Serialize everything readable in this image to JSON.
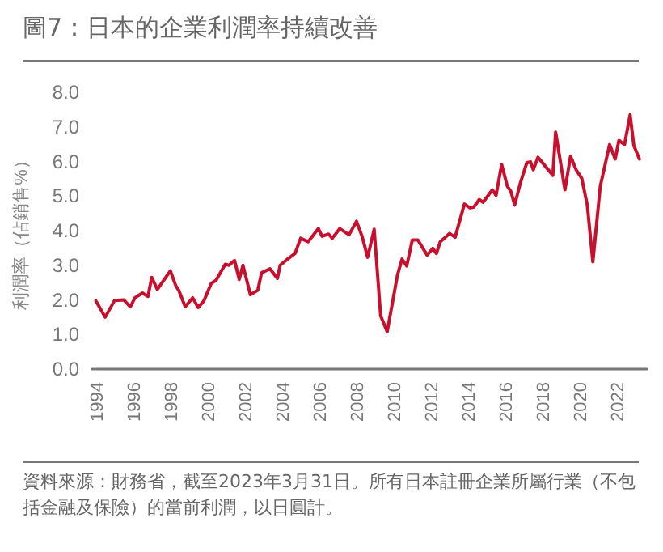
{
  "chart_data": {
    "type": "line",
    "title": "圖7：日本的企業利潤率持續改善",
    "ylabel": "利潤率（佔銷售%）",
    "annotations": [
      "資料來源：財務省，截至2023年3月31日。所有日本註冊企業所屬行業（不包括金融及保險）的當前利潤，以日圓計。"
    ],
    "series": [
      {
        "color": "#c8102e",
        "x": [
          1993.9,
          1994.4,
          1994.9,
          1995.4,
          1995.75,
          1996.0,
          1996.4,
          1996.7,
          1996.9,
          1997.2,
          1997.9,
          1998.2,
          1998.35,
          1998.7,
          1999.1,
          1999.4,
          1999.7,
          2000.1,
          2000.35,
          2000.85,
          2001.05,
          2001.35,
          2001.6,
          2001.8,
          2002.2,
          2002.6,
          2002.8,
          2003.25,
          2003.65,
          2003.8,
          2004.2,
          2004.6,
          2004.9,
          2005.3,
          2005.85,
          2006.05,
          2006.4,
          2006.6,
          2007.0,
          2007.5,
          2007.9,
          2008.2,
          2008.5,
          2008.85,
          2009.2,
          2009.55,
          2010.1,
          2010.35,
          2010.6,
          2010.9,
          2011.2,
          2011.7,
          2012.0,
          2012.2,
          2012.4,
          2012.9,
          2013.2,
          2013.7,
          2014.0,
          2014.2,
          2014.5,
          2014.7,
          2015.2,
          2015.4,
          2015.7,
          2016.0,
          2016.2,
          2016.4,
          2016.7,
          2017.05,
          2017.25,
          2017.4,
          2017.65,
          2018.45,
          2018.6,
          2019.1,
          2019.4,
          2019.7,
          2020.0,
          2020.3,
          2020.6,
          2021.0,
          2021.5,
          2021.8,
          2022.0,
          2022.3,
          2022.6,
          2022.8,
          2023.1
        ],
        "values": [
          1.97,
          1.5,
          1.98,
          2.0,
          1.8,
          2.06,
          2.2,
          2.1,
          2.65,
          2.3,
          2.84,
          2.4,
          2.28,
          1.8,
          2.06,
          1.78,
          1.97,
          2.48,
          2.56,
          3.03,
          3.0,
          3.14,
          2.59,
          3.0,
          2.15,
          2.28,
          2.78,
          2.9,
          2.62,
          3.0,
          3.18,
          3.34,
          3.78,
          3.68,
          4.06,
          3.84,
          3.9,
          3.78,
          4.06,
          3.88,
          4.27,
          3.84,
          3.23,
          4.04,
          1.54,
          1.08,
          2.71,
          3.18,
          2.98,
          3.73,
          3.73,
          3.29,
          3.49,
          3.34,
          3.68,
          3.92,
          3.81,
          4.77,
          4.66,
          4.68,
          4.9,
          4.82,
          5.18,
          5.02,
          5.91,
          5.29,
          5.13,
          4.74,
          5.37,
          5.96,
          5.99,
          5.76,
          6.12,
          5.6,
          6.85,
          5.18,
          6.15,
          5.76,
          5.52,
          4.74,
          3.1,
          5.29,
          6.49,
          6.07,
          6.61,
          6.49,
          7.35,
          6.46,
          6.07
        ]
      }
    ],
    "xlim": [
      1993.7,
      2023.5
    ],
    "xticks": [
      1994,
      1996,
      1998,
      2000,
      2002,
      2004,
      2006,
      2008,
      2010,
      2012,
      2014,
      2016,
      2018,
      2020,
      2022
    ],
    "ylim": [
      0,
      8
    ],
    "yticks": [
      {
        "value": 0,
        "label": "0.0"
      },
      {
        "value": 1,
        "label": "1.0"
      },
      {
        "value": 2,
        "label": "2.0"
      },
      {
        "value": 3,
        "label": "3.0"
      },
      {
        "value": 4,
        "label": "4.0"
      },
      {
        "value": 5,
        "label": "5.0"
      },
      {
        "value": 6,
        "label": "6.0"
      },
      {
        "value": 7,
        "label": "7.0"
      },
      {
        "value": 8,
        "label": "8.0"
      }
    ],
    "grid": false,
    "marker": "none",
    "line_style": "solid"
  }
}
